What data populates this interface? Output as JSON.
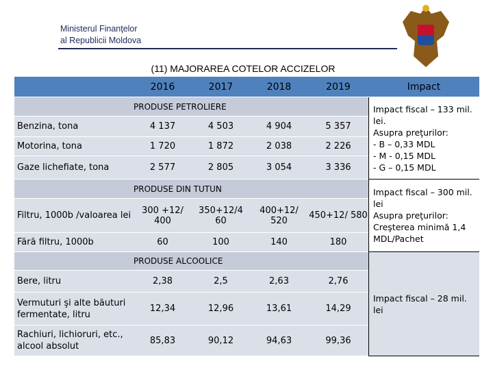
{
  "header": {
    "ministry": [
      "Ministerul Finanţelor",
      "al Republicii Moldova"
    ],
    "title": "(11) MAJORAREA COTELOR ACCIZELOR"
  },
  "table": {
    "columns": [
      "",
      "2016",
      "2017",
      "2018",
      "2019",
      "Impact"
    ],
    "sections": [
      {
        "title": "PRODUSE PETROLIERE",
        "rows": [
          [
            "Benzina, tona",
            "4 137",
            "4 503",
            "4 904",
            "5 357"
          ],
          [
            "Motorina, tona",
            "1 720",
            "1 872",
            "2 038",
            "2 226"
          ],
          [
            "Gaze lichefiate, tona",
            "2 577",
            "2 805",
            "3 054",
            "3 336"
          ]
        ],
        "impact": [
          "Impact fiscal – 133 mil. lei.",
          "Asupra preţurilor:",
          "- B – 0,33 MDL",
          "- M  - 0,15 MDL",
          "- G – 0,15 MDL"
        ]
      },
      {
        "title": "PRODUSE DIN TUTUN",
        "rows": [
          [
            "Filtru, 1000b /valoarea lei",
            "300 +12/ 400",
            "350+12/4 60",
            "400+12/ 520",
            "450+12/ 580"
          ],
          [
            "Fără filtru, 1000b",
            "60",
            "100",
            "140",
            "180"
          ]
        ],
        "impact": [
          "Impact fiscal – 300 mil. lei",
          "Asupra preţurilor:",
          "Creşterea minimă 1,4 MDL/Pachet"
        ]
      },
      {
        "title": "PRODUSE ALCOOLICE",
        "rows": [
          [
            "Bere, litru",
            "2,38",
            "2,5",
            "2,63",
            "2,76"
          ],
          [
            "Vermuturi şi alte băuturi fermentate, litru",
            "12,34",
            "12,96",
            "13,61",
            "14,29"
          ],
          [
            "Rachiuri, lichioruri, etc., alcool absolut",
            "85,83",
            "90,12",
            "94,63",
            "99,36"
          ]
        ],
        "impact": [
          "Impact fiscal – 28 mil. lei"
        ]
      }
    ]
  }
}
